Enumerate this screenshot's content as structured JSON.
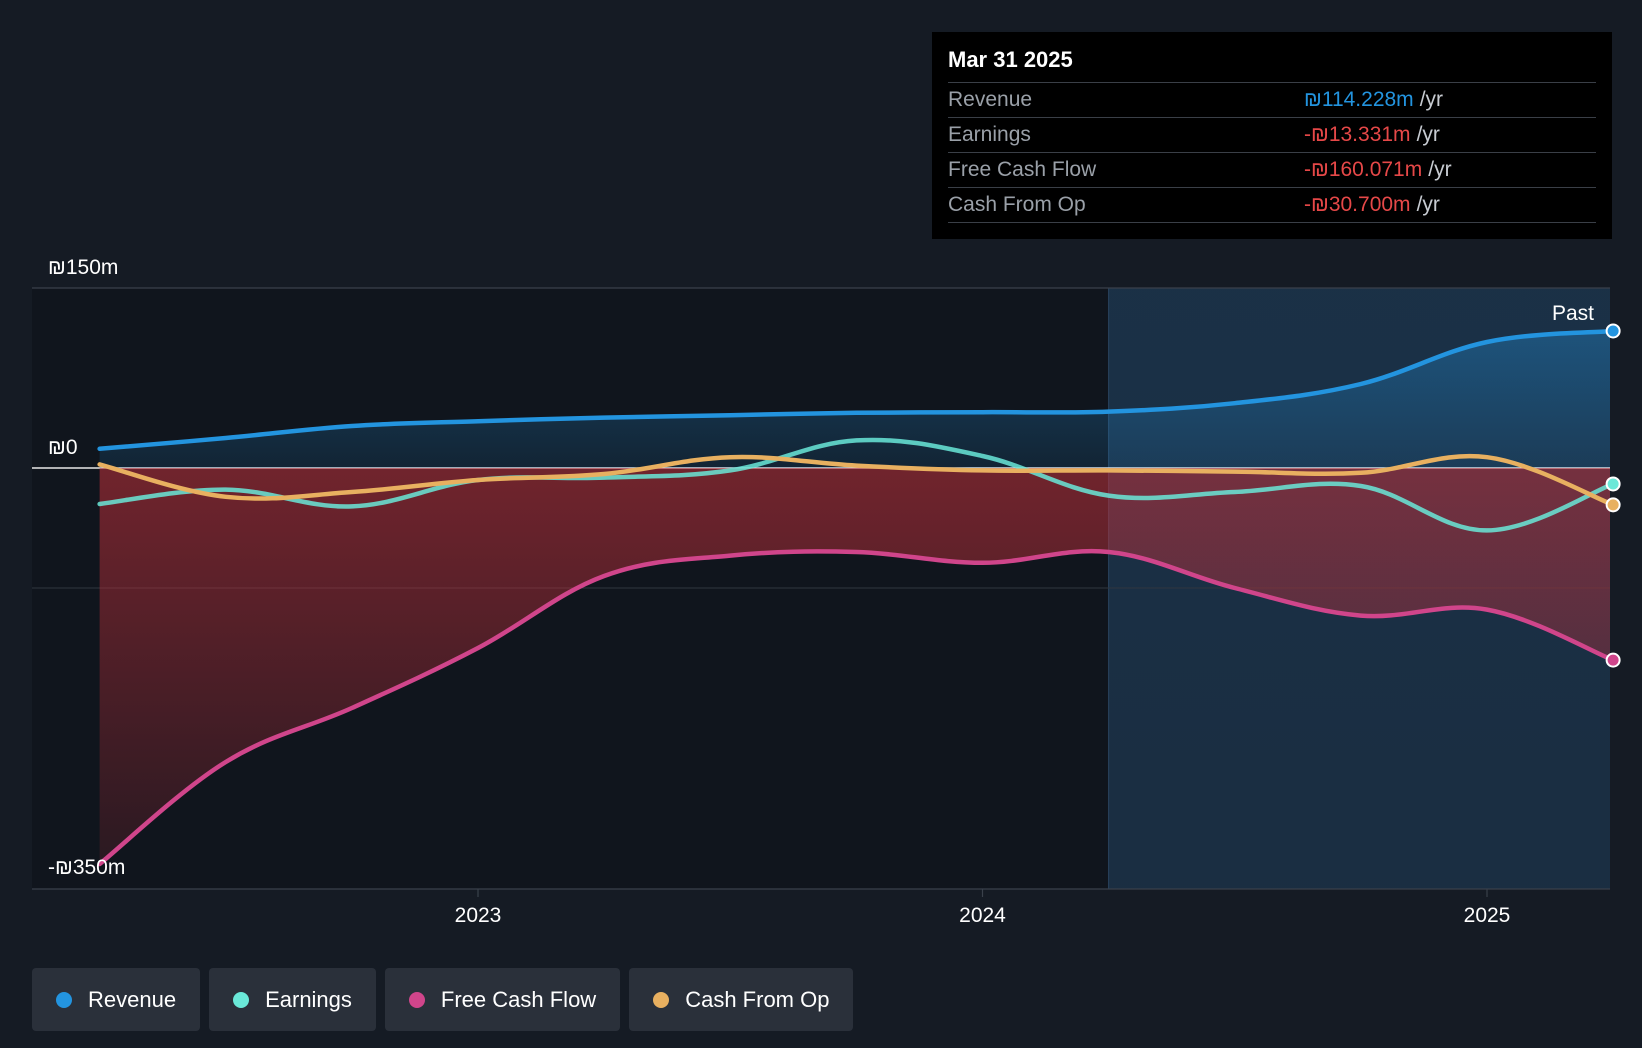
{
  "tooltip": {
    "date": "Mar 31 2025",
    "rows": [
      {
        "label": "Revenue",
        "value": "₪114.228m",
        "unit": "/yr",
        "color": "#2394df"
      },
      {
        "label": "Earnings",
        "value": "-₪13.331m",
        "unit": "/yr",
        "color": "#e64848"
      },
      {
        "label": "Free Cash Flow",
        "value": "-₪160.071m",
        "unit": "/yr",
        "color": "#e64848"
      },
      {
        "label": "Cash From Op",
        "value": "-₪30.700m",
        "unit": "/yr",
        "color": "#e64848"
      }
    ]
  },
  "past_label": "Past",
  "legend": [
    {
      "label": "Revenue",
      "color": "#2394df"
    },
    {
      "label": "Earnings",
      "color": "#6ae8d8"
    },
    {
      "label": "Free Cash Flow",
      "color": "#d0458b"
    },
    {
      "label": "Cash From Op",
      "color": "#e8b060"
    }
  ],
  "chart_data": {
    "type": "line",
    "ylim": [
      -350,
      150
    ],
    "y_ticks": [
      {
        "value": 150,
        "label": "₪150m"
      },
      {
        "value": 0,
        "label": "₪0"
      },
      {
        "value": -350,
        "label": "-₪350m"
      }
    ],
    "x_ticks": [
      {
        "value": 2023.0,
        "label": "2023"
      },
      {
        "value": 2024.0,
        "label": "2024"
      },
      {
        "value": 2025.0,
        "label": "2025"
      }
    ],
    "xlim": [
      2022.12,
      2025.25
    ],
    "past_start": 2024.25,
    "series": [
      {
        "name": "Revenue",
        "color": "#2394df",
        "points": [
          [
            2022.25,
            16
          ],
          [
            2022.5,
            25
          ],
          [
            2022.75,
            35
          ],
          [
            2023.0,
            39
          ],
          [
            2023.25,
            42
          ],
          [
            2023.5,
            44
          ],
          [
            2023.75,
            46
          ],
          [
            2024.0,
            46.5
          ],
          [
            2024.25,
            47
          ],
          [
            2024.5,
            54
          ],
          [
            2024.75,
            70
          ],
          [
            2025.0,
            105
          ],
          [
            2025.25,
            114.2
          ]
        ]
      },
      {
        "name": "Earnings",
        "color": "#6ae8d8",
        "points": [
          [
            2022.25,
            -30
          ],
          [
            2022.5,
            -18
          ],
          [
            2022.75,
            -32
          ],
          [
            2023.0,
            -10
          ],
          [
            2023.25,
            -8
          ],
          [
            2023.5,
            -2
          ],
          [
            2023.75,
            23
          ],
          [
            2024.0,
            10
          ],
          [
            2024.25,
            -23
          ],
          [
            2024.5,
            -20
          ],
          [
            2024.75,
            -15
          ],
          [
            2025.0,
            -52
          ],
          [
            2025.25,
            -13.3
          ]
        ]
      },
      {
        "name": "Free Cash Flow",
        "color": "#d0458b",
        "points": [
          [
            2022.25,
            -330
          ],
          [
            2022.5,
            -245
          ],
          [
            2022.75,
            -200
          ],
          [
            2023.0,
            -150
          ],
          [
            2023.25,
            -90
          ],
          [
            2023.5,
            -73
          ],
          [
            2023.75,
            -70
          ],
          [
            2024.0,
            -79
          ],
          [
            2024.25,
            -70
          ],
          [
            2024.5,
            -100
          ],
          [
            2024.75,
            -123
          ],
          [
            2025.0,
            -118
          ],
          [
            2025.25,
            -160.1
          ]
        ]
      },
      {
        "name": "Cash From Op",
        "color": "#e8b060",
        "points": [
          [
            2022.25,
            3
          ],
          [
            2022.5,
            -24
          ],
          [
            2022.75,
            -20
          ],
          [
            2023.0,
            -10
          ],
          [
            2023.25,
            -5
          ],
          [
            2023.5,
            9
          ],
          [
            2023.75,
            2
          ],
          [
            2024.0,
            -2
          ],
          [
            2024.25,
            -2
          ],
          [
            2024.5,
            -3
          ],
          [
            2024.75,
            -4
          ],
          [
            2025.0,
            9
          ],
          [
            2025.25,
            -30.7
          ]
        ]
      }
    ]
  }
}
